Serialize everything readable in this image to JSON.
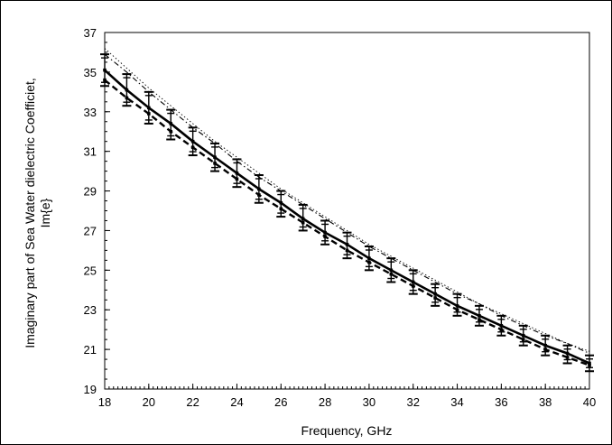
{
  "chart_data": {
    "type": "line",
    "title": "",
    "xlabel": "Frequency, GHz",
    "ylabel_lines": [
      "Imaginary part of Sea Water dielectric Coefficiet,",
      "Im{e}"
    ],
    "xlim": [
      18,
      40
    ],
    "ylim": [
      19,
      37
    ],
    "x_ticks": [
      "18",
      "20",
      "22",
      "24",
      "26",
      "28",
      "30",
      "32",
      "34",
      "36",
      "38",
      "40"
    ],
    "y_ticks": [
      "19",
      "21",
      "23",
      "25",
      "27",
      "29",
      "31",
      "33",
      "35",
      "37"
    ],
    "x_tick_values": [
      18,
      20,
      22,
      24,
      26,
      28,
      30,
      32,
      34,
      36,
      38,
      40
    ],
    "y_tick_values": [
      19,
      21,
      23,
      25,
      27,
      29,
      31,
      33,
      35,
      37
    ],
    "grid": false,
    "legend": "none",
    "x": [
      18,
      19,
      20,
      21,
      22,
      23,
      24,
      25,
      26,
      27,
      28,
      29,
      30,
      31,
      32,
      33,
      34,
      35,
      36,
      37,
      38,
      39,
      40
    ],
    "series": [
      {
        "style": "solid-thick",
        "values": [
          35.1,
          34.1,
          33.2,
          32.4,
          31.5,
          30.7,
          29.9,
          29.1,
          28.4,
          27.6,
          26.9,
          26.3,
          25.6,
          25.0,
          24.4,
          23.8,
          23.2,
          22.7,
          22.2,
          21.7,
          21.2,
          20.8,
          20.3
        ],
        "error_low": [
          34.3,
          33.3,
          32.4,
          31.6,
          30.8,
          30.0,
          29.2,
          28.4,
          27.7,
          27.0,
          26.3,
          25.6,
          25.0,
          24.4,
          23.8,
          23.2,
          22.7,
          22.2,
          21.7,
          21.2,
          20.7,
          20.3,
          19.9
        ],
        "error_high": [
          35.9,
          34.9,
          34.0,
          33.1,
          32.2,
          31.4,
          30.6,
          29.8,
          29.0,
          28.3,
          27.5,
          26.9,
          26.2,
          25.6,
          25.0,
          24.3,
          23.8,
          23.2,
          22.7,
          22.2,
          21.7,
          21.2,
          20.7
        ]
      },
      {
        "style": "dashed-thick",
        "values": [
          34.6,
          33.7,
          32.9,
          32.0,
          31.2,
          30.4,
          29.6,
          28.8,
          28.1,
          27.4,
          26.7,
          26.0,
          25.4,
          24.8,
          24.2,
          23.6,
          23.0,
          22.5,
          22.0,
          21.5,
          21.0,
          20.6,
          20.2
        ]
      },
      {
        "style": "dash-dot-thin",
        "values": [
          35.9,
          35.0,
          34.0,
          33.1,
          32.2,
          31.4,
          30.5,
          29.7,
          29.0,
          28.3,
          27.6,
          26.9,
          26.2,
          25.6,
          25.0,
          24.4,
          23.8,
          23.3,
          22.7,
          22.2,
          21.7,
          21.3,
          20.8
        ]
      },
      {
        "style": "dotted-thin",
        "values": [
          36.2,
          35.2,
          34.2,
          33.3,
          32.4,
          31.5,
          30.7,
          29.9,
          29.1,
          28.4,
          27.7,
          27.0,
          26.3,
          25.7,
          25.1,
          24.5,
          23.9,
          23.3,
          22.8,
          22.3,
          21.8,
          21.3,
          20.9
        ]
      }
    ]
  }
}
